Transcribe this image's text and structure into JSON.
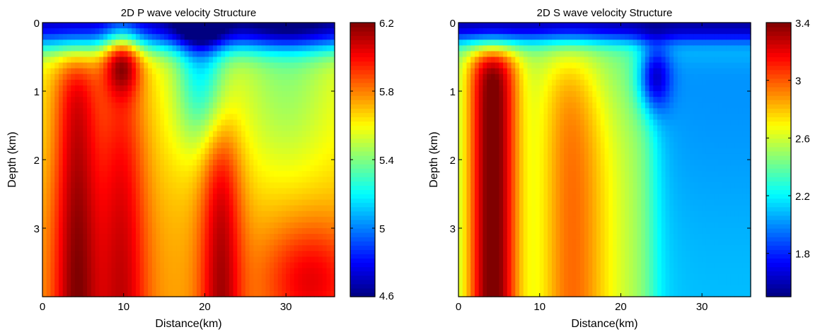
{
  "chart_data": [
    {
      "type": "contour",
      "title": "2D P wave velocity Structure",
      "xlabel": "Distance(km)",
      "ylabel": "Depth (km)",
      "xlim": [
        0,
        36
      ],
      "ylim": [
        4,
        0
      ],
      "xticks": [
        0,
        10,
        20,
        30
      ],
      "yticks": [
        0,
        1,
        2,
        3
      ],
      "colorbar": {
        "min": 4.6,
        "max": 6.2,
        "ticks": [
          4.6,
          5,
          5.4,
          5.8,
          6.2
        ]
      },
      "colormap": "jet",
      "grid": false,
      "features": [
        {
          "type": "low-velocity surface layer",
          "depth_range": [
            0,
            0.4
          ]
        },
        {
          "type": "high-velocity column",
          "x_center": 4,
          "value": 6.1
        },
        {
          "type": "high-velocity column",
          "x_center": 22,
          "value": 6.2
        },
        {
          "type": "high-velocity closure",
          "x": 9.8,
          "depth": 0.55,
          "value": 5.8
        },
        {
          "type": "low-velocity trough",
          "x_center": 19.5,
          "value": 4.6
        },
        {
          "type": "high-velocity closure",
          "x": 33,
          "depth": 3.75,
          "value": 6.1
        }
      ]
    },
    {
      "type": "contour",
      "title": "2D S wave velocity Structure",
      "xlabel": "Distance(km)",
      "ylabel": "Depth (km)",
      "xlim": [
        0,
        36
      ],
      "ylim": [
        4,
        0
      ],
      "xticks": [
        0,
        10,
        20,
        30
      ],
      "yticks": [
        0,
        1,
        2,
        3
      ],
      "colorbar": {
        "min": 1.5,
        "max": 3.4,
        "ticks": [
          1.8,
          2.2,
          2.6,
          3,
          3.4
        ]
      },
      "colormap": "jet",
      "grid": false,
      "features": [
        {
          "type": "low-velocity surface layer",
          "depth_range": [
            0,
            0.3
          ]
        },
        {
          "type": "high-velocity column",
          "x_center": 4,
          "value": 3.4
        },
        {
          "type": "intermediate column",
          "x_center": 13.5,
          "value": 2.6
        },
        {
          "type": "low-velocity closure",
          "x": 24,
          "depth": 0.8,
          "value": 1.6
        },
        {
          "type": "low-velocity region",
          "x_range": [
            24,
            36
          ],
          "value": 1.9
        }
      ]
    }
  ]
}
